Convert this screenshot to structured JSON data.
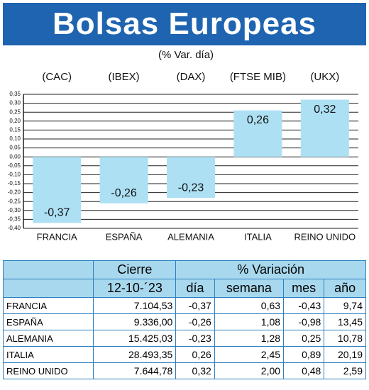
{
  "header": {
    "title": "Bolsas Europeas"
  },
  "chart_data": {
    "type": "bar",
    "subtitle": "(% Var. día)",
    "indices": [
      "(CAC)",
      "(IBEX)",
      "(DAX)",
      "(FTSE MIB)",
      "(UKX)"
    ],
    "categories": [
      "FRANCIA",
      "ESPAÑA",
      "ALEMANIA",
      "ITALIA",
      "REINO UNIDO"
    ],
    "values": [
      -0.37,
      -0.26,
      -0.23,
      0.26,
      0.32
    ],
    "value_labels": [
      "-0,37",
      "-0,26",
      "-0,23",
      "0,26",
      "0,32"
    ],
    "color": "#aee0f4",
    "ylim": [
      -0.4,
      0.35
    ],
    "yticks": [
      {
        "value": -0.4,
        "label": "-0,40"
      },
      {
        "value": -0.35,
        "label": "-0,35"
      },
      {
        "value": -0.3,
        "label": "-0,30"
      },
      {
        "value": -0.25,
        "label": "-0,25"
      },
      {
        "value": -0.2,
        "label": "-0,20"
      },
      {
        "value": -0.15,
        "label": "-0,15"
      },
      {
        "value": -0.1,
        "label": "-0,10"
      },
      {
        "value": -0.05,
        "label": "-0,05"
      },
      {
        "value": 0,
        "label": "0,00"
      },
      {
        "value": 0.05,
        "label": "0,05"
      },
      {
        "value": 0.1,
        "label": "0,10"
      },
      {
        "value": 0.15,
        "label": "0,15"
      },
      {
        "value": 0.2,
        "label": "0,20"
      },
      {
        "value": 0.25,
        "label": "0,25"
      },
      {
        "value": 0.3,
        "label": "0,30"
      },
      {
        "value": 0.35,
        "label": "0,35"
      }
    ],
    "grid": true
  },
  "table": {
    "group_headers": [
      "Cierre",
      "% Variación"
    ],
    "columns": [
      "12-10-´23",
      "día",
      "semana",
      "mes",
      "año"
    ],
    "rows": [
      [
        "FRANCIA",
        "7.104,53",
        "-0,37",
        "0,63",
        "-0,43",
        "9,74"
      ],
      [
        "ESPAÑA",
        "9.336,00",
        "-0,26",
        "1,08",
        "-0,98",
        "13,45"
      ],
      [
        "ALEMANIA",
        "15.425,03",
        "-0,23",
        "1,28",
        "0,25",
        "10,78"
      ],
      [
        "ITALIA",
        "28.493,35",
        "0,26",
        "2,45",
        "0,89",
        "20,19"
      ],
      [
        "REINO UNIDO",
        "7.644,78",
        "0,32",
        "2,00",
        "0,48",
        "2,59"
      ]
    ]
  }
}
